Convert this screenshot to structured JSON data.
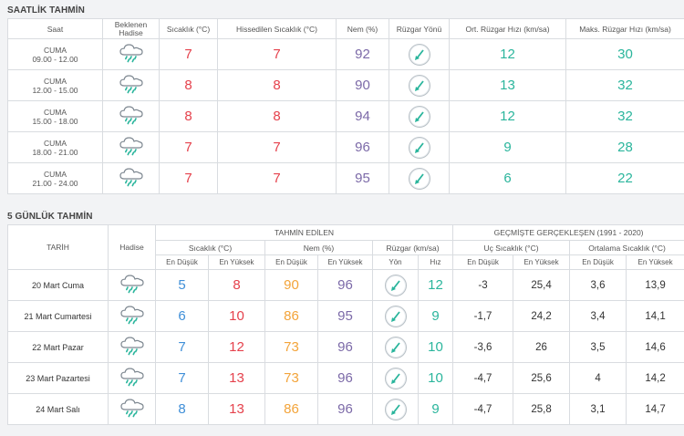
{
  "hourly": {
    "title": "SAATLİK TAHMİN",
    "headers": [
      "Saat",
      "Beklenen Hadise",
      "Sıcaklık (°C)",
      "Hissedilen Sıcaklık (°C)",
      "Nem (%)",
      "Rüzgar Yönü",
      "Ort. Rüzgar Hızı (km/sa)",
      "Maks. Rüzgar Hızı (km/sa)"
    ],
    "rows": [
      {
        "day": "CUMA",
        "range": "09.00 - 12.00",
        "icon": "cloud-rain-icon",
        "temp": "7",
        "feels": "7",
        "hum": "92",
        "dir": "wind-direction-icon",
        "avg": "12",
        "max": "30"
      },
      {
        "day": "CUMA",
        "range": "12.00 - 15.00",
        "icon": "cloud-rain-icon",
        "temp": "8",
        "feels": "8",
        "hum": "90",
        "dir": "wind-direction-icon",
        "avg": "13",
        "max": "32"
      },
      {
        "day": "CUMA",
        "range": "15.00 - 18.00",
        "icon": "cloud-rain-icon",
        "temp": "8",
        "feels": "8",
        "hum": "94",
        "dir": "wind-direction-icon",
        "avg": "12",
        "max": "32"
      },
      {
        "day": "CUMA",
        "range": "18.00 - 21.00",
        "icon": "cloud-rain-icon",
        "temp": "7",
        "feels": "7",
        "hum": "96",
        "dir": "wind-direction-icon",
        "avg": "9",
        "max": "28"
      },
      {
        "day": "CUMA",
        "range": "21.00 - 24.00",
        "icon": "cloud-rain-icon",
        "temp": "7",
        "feels": "7",
        "hum": "95",
        "dir": "wind-direction-icon",
        "avg": "6",
        "max": "22"
      }
    ]
  },
  "daily": {
    "title": "5 GÜNLÜK TAHMİN",
    "h_date": "TARİH",
    "h_event": "Hadise",
    "h_forecast": "TAHMİN EDİLEN",
    "h_past": "GEÇMİŞTE GERÇEKLEŞEN (1991 - 2020)",
    "h_temp": "Sıcaklık (°C)",
    "h_hum": "Nem (%)",
    "h_wind": "Rüzgar (km/sa)",
    "h_extreme": "Uç Sıcaklık (°C)",
    "h_avgtemp": "Ortalama Sıcaklık (°C)",
    "lo": "En Düşük",
    "hi": "En Yüksek",
    "dir_label": "Yön",
    "speed_label": "Hız",
    "rows": [
      {
        "date": "20 Mart Cuma",
        "icon": "cloud-rain-icon",
        "tlo": "5",
        "thi": "8",
        "hlo": "90",
        "hhi": "96",
        "speed": "12",
        "elo": "-3",
        "ehi": "25,4",
        "alo": "3,6",
        "ahi": "13,9"
      },
      {
        "date": "21 Mart Cumartesi",
        "icon": "cloud-rain-icon",
        "tlo": "6",
        "thi": "10",
        "hlo": "86",
        "hhi": "95",
        "speed": "9",
        "elo": "-1,7",
        "ehi": "24,2",
        "alo": "3,4",
        "ahi": "14,1"
      },
      {
        "date": "22 Mart Pazar",
        "icon": "cloud-rain-icon",
        "tlo": "7",
        "thi": "12",
        "hlo": "73",
        "hhi": "96",
        "speed": "10",
        "elo": "-3,6",
        "ehi": "26",
        "alo": "3,5",
        "ahi": "14,6"
      },
      {
        "date": "23 Mart Pazartesi",
        "icon": "cloud-rain-icon",
        "tlo": "7",
        "thi": "13",
        "hlo": "73",
        "hhi": "96",
        "speed": "10",
        "elo": "-4,7",
        "ehi": "25,6",
        "alo": "4",
        "ahi": "14,2"
      },
      {
        "date": "24 Mart Salı",
        "icon": "cloud-rain-icon",
        "tlo": "8",
        "thi": "13",
        "hlo": "86",
        "hhi": "96",
        "speed": "9",
        "elo": "-4,7",
        "ehi": "25,8",
        "alo": "3,1",
        "ahi": "14,7"
      }
    ]
  },
  "colors": {
    "red": "#e5414c",
    "purple": "#7c6aa8",
    "teal": "#2ab59c",
    "blue": "#3f8fd8",
    "orange": "#f3a43a"
  }
}
